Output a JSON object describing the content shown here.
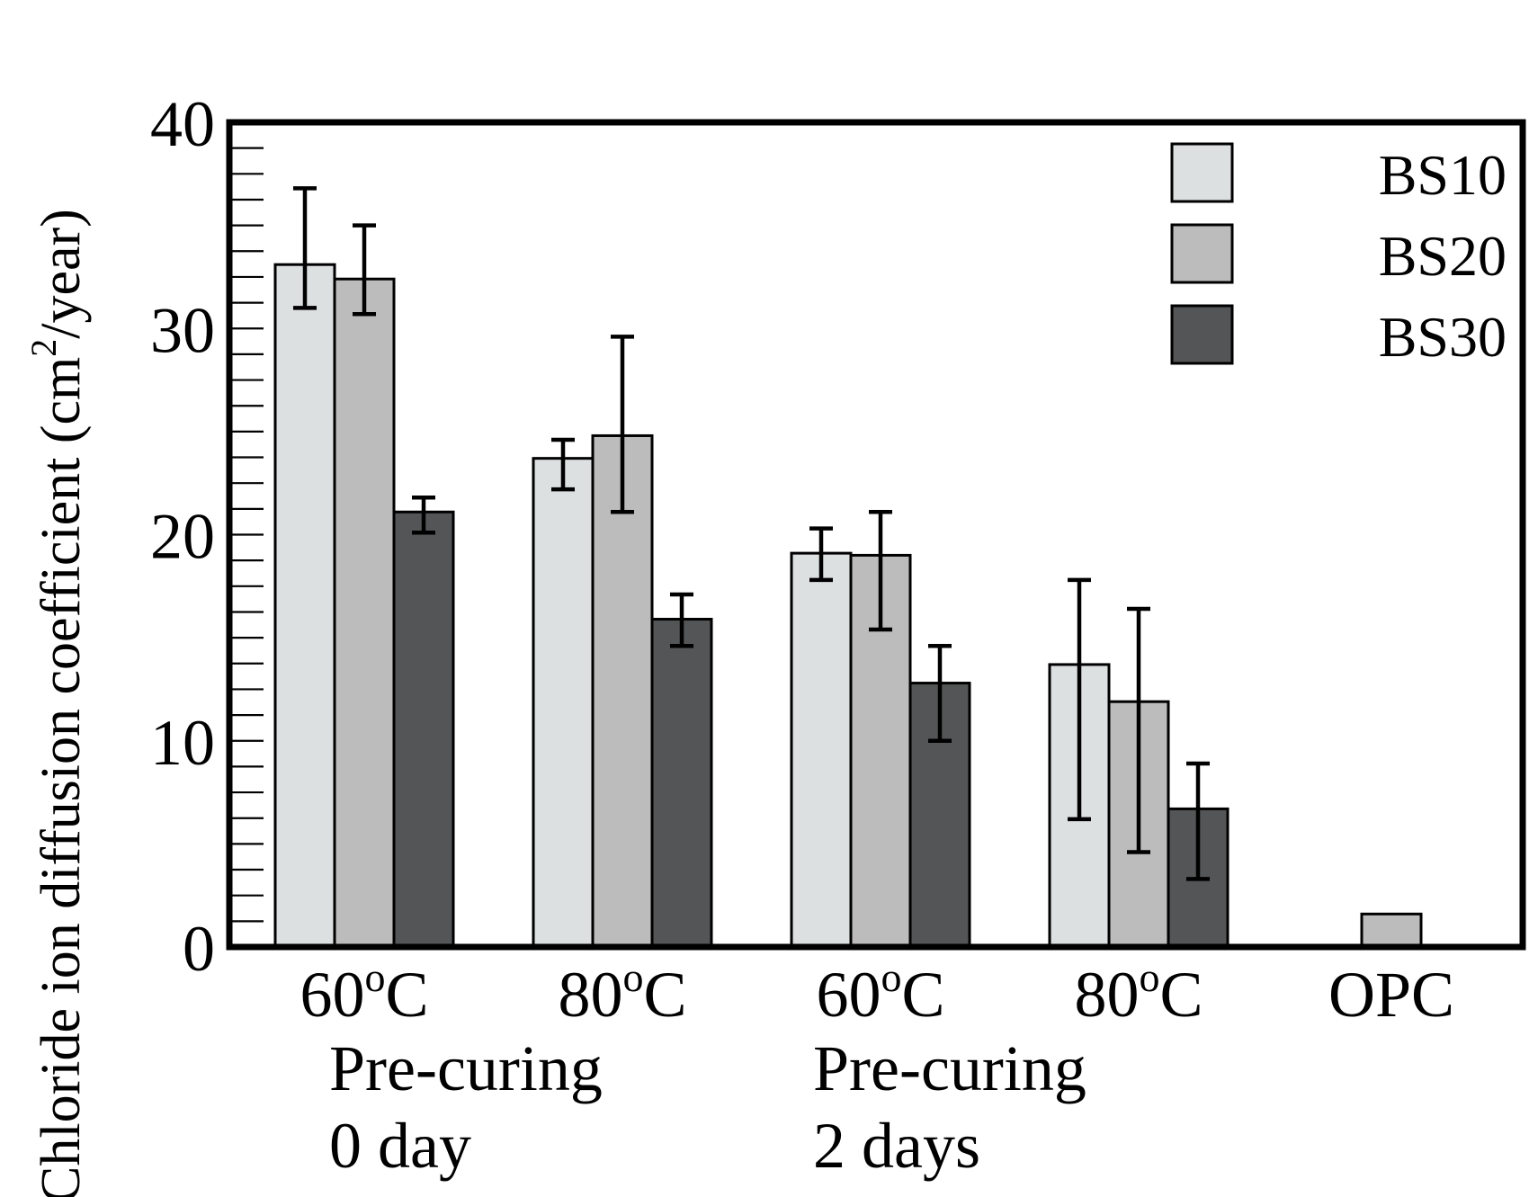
{
  "chart_data": {
    "type": "bar",
    "ylabel": "Chloride ion diffusion coefficient (cm²/year)",
    "ylabel_parts": {
      "before": "Chloride ion diffusion coefficient (cm",
      "sup": "2",
      "after": "/year)"
    },
    "ylim": [
      0,
      40
    ],
    "yticks": [
      "0",
      "10",
      "20",
      "30",
      "40"
    ],
    "yminor_step": 1.25,
    "categories": [
      {
        "label": "60°C",
        "base": "60",
        "sup": "o",
        "unit": "C"
      },
      {
        "label": "80°C",
        "base": "80",
        "sup": "o",
        "unit": "C"
      },
      {
        "label": "60°C",
        "base": "60",
        "sup": "o",
        "unit": "C"
      },
      {
        "label": "80°C",
        "base": "80",
        "sup": "o",
        "unit": "C"
      },
      {
        "label": "OPC",
        "base": "OPC",
        "sup": "",
        "unit": ""
      }
    ],
    "group_labels": [
      {
        "line1": "Pre-curing",
        "line2": "0 day",
        "categories": [
          0,
          1
        ]
      },
      {
        "line1": "Pre-curing",
        "line2": "2 days",
        "categories": [
          2,
          3
        ]
      }
    ],
    "series": [
      {
        "name": "BS10",
        "color": "#dde0e1",
        "values": [
          33.1,
          23.7,
          19.1,
          13.7,
          null
        ],
        "err_low": [
          31.0,
          22.2,
          17.8,
          6.2,
          null
        ],
        "err_high": [
          36.8,
          24.6,
          20.3,
          17.8,
          null
        ]
      },
      {
        "name": "BS20",
        "color": "#bcbcbc",
        "values": [
          32.4,
          24.8,
          19.0,
          11.9,
          1.6
        ],
        "err_low": [
          30.7,
          21.1,
          15.4,
          4.6,
          null
        ],
        "err_high": [
          35.0,
          29.6,
          21.1,
          16.4,
          null
        ]
      },
      {
        "name": "BS30",
        "color": "#545556",
        "values": [
          21.1,
          15.9,
          12.8,
          6.7,
          null
        ],
        "err_low": [
          20.1,
          14.6,
          10.0,
          3.3,
          null
        ],
        "err_high": [
          21.8,
          17.1,
          14.6,
          8.9,
          null
        ]
      }
    ],
    "legend": {
      "placement": "top-right"
    }
  }
}
